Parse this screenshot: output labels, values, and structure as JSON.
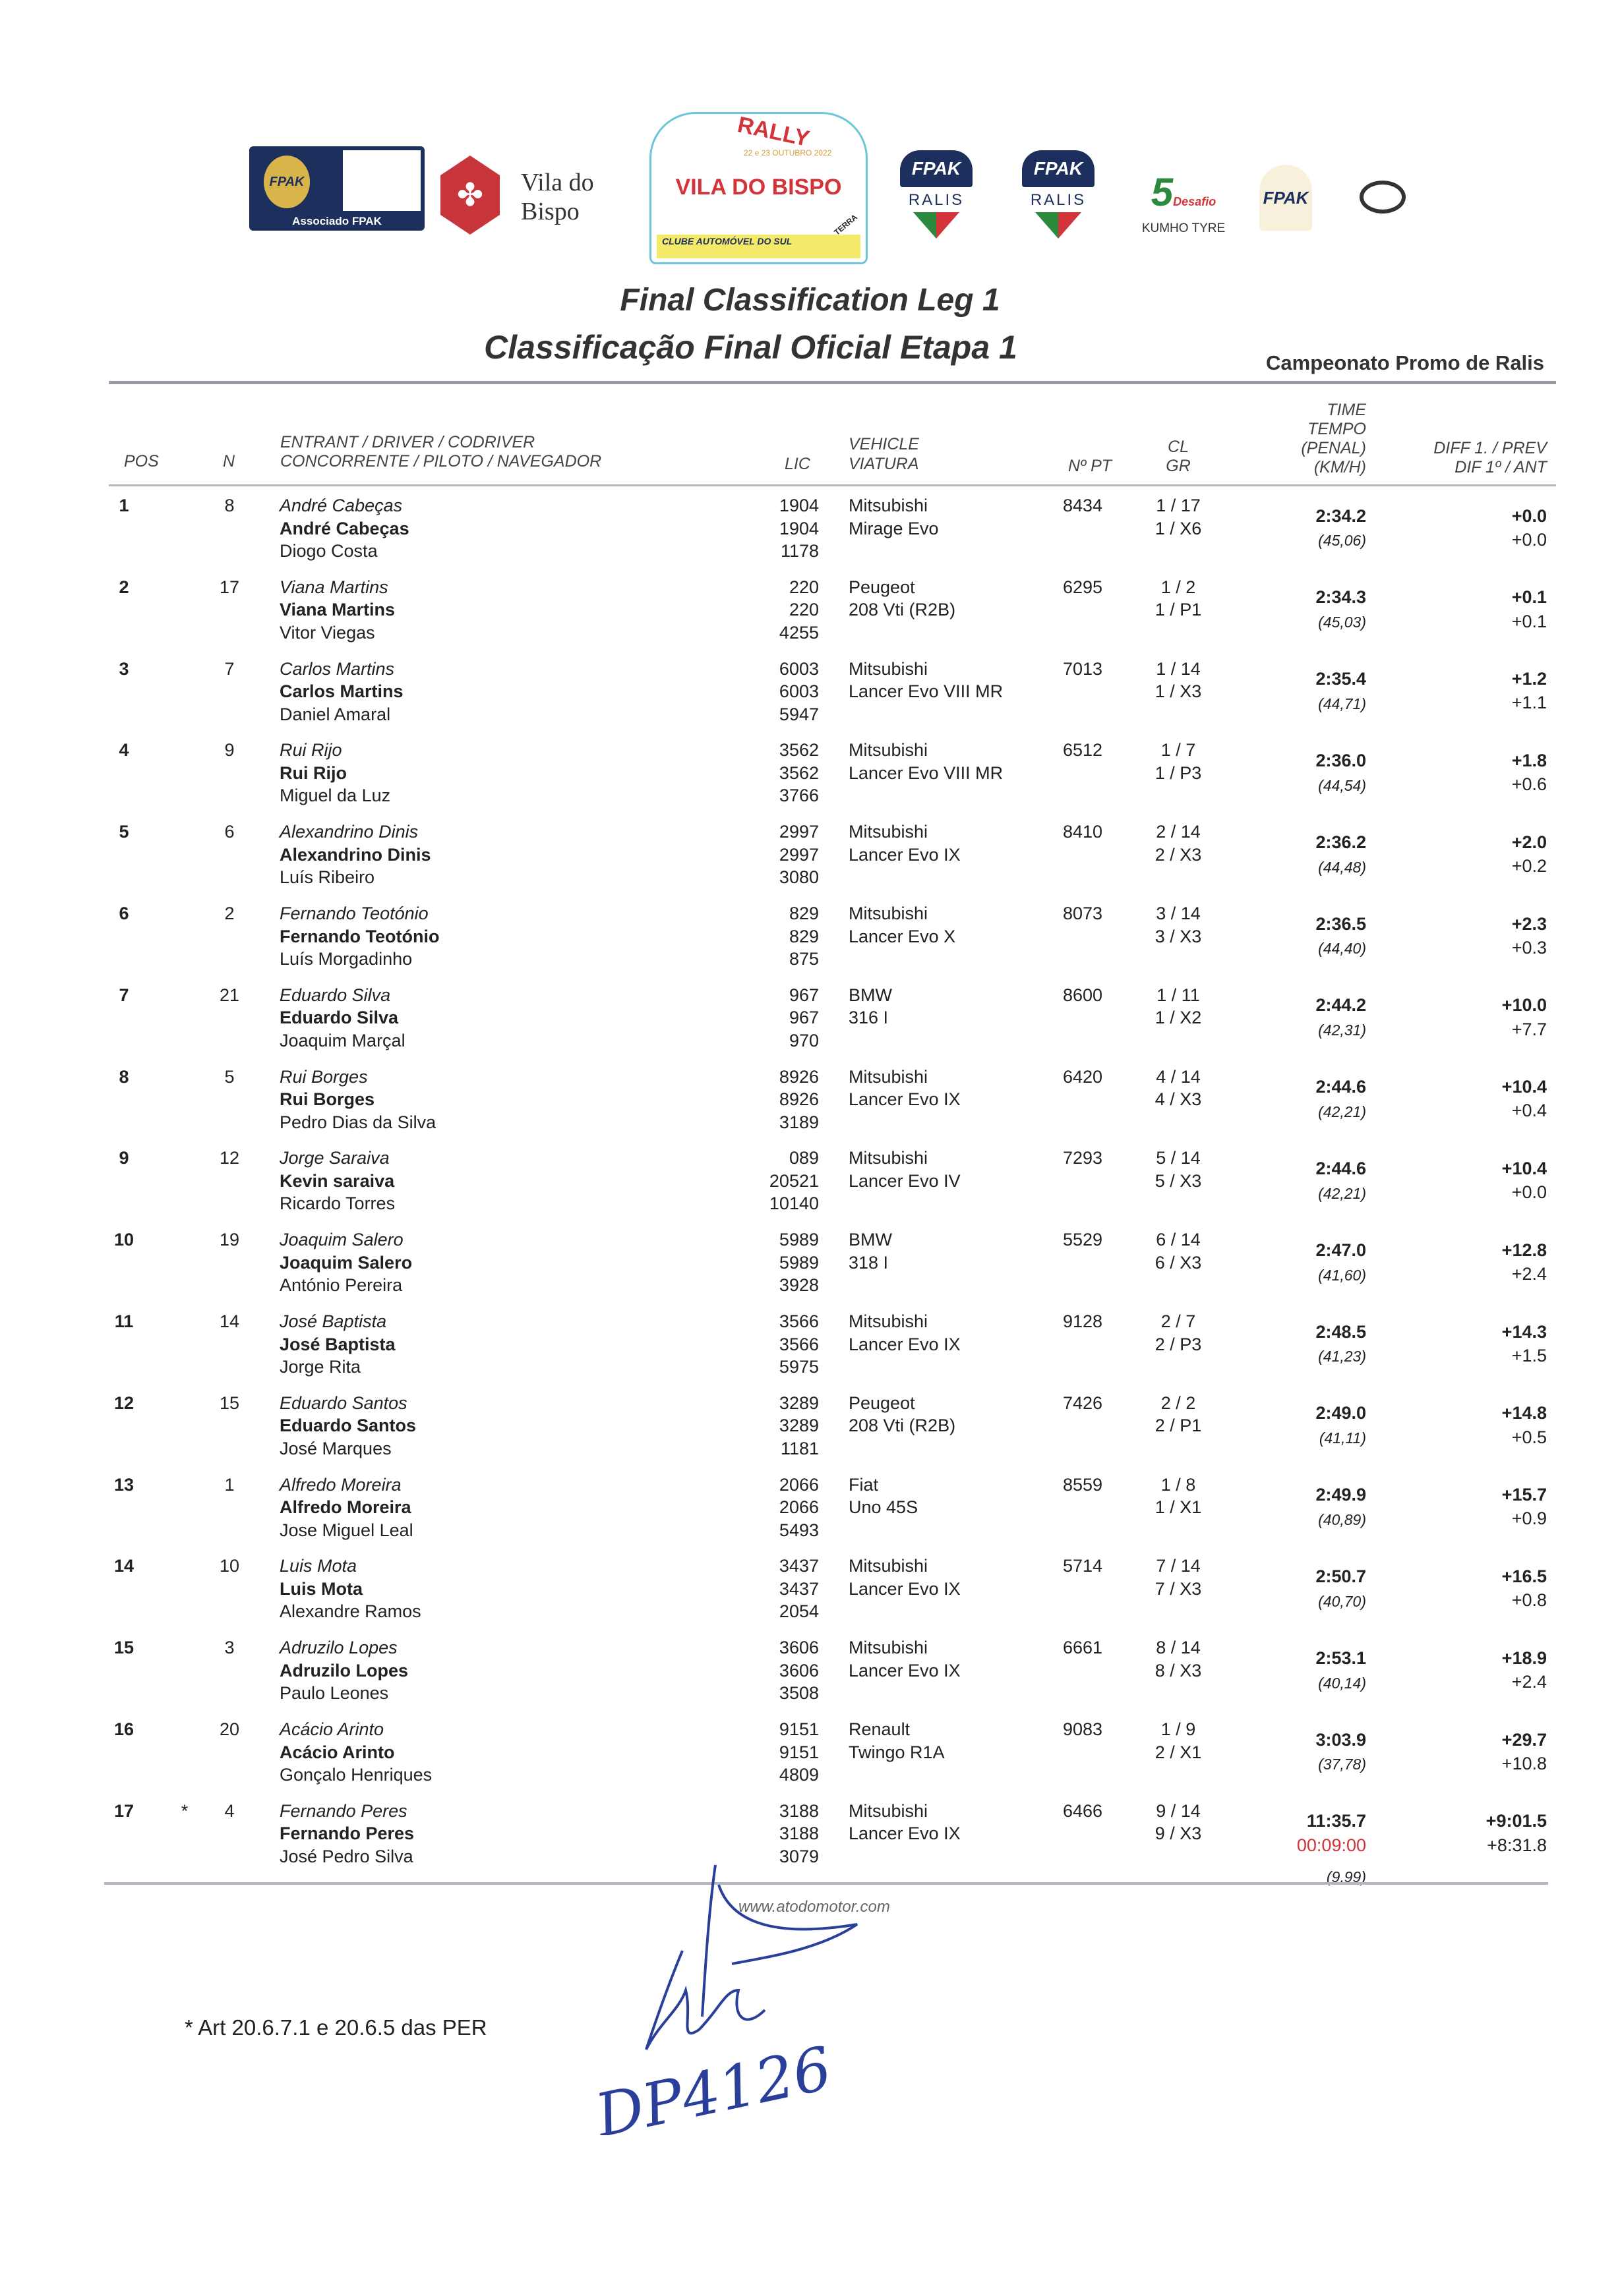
{
  "logos": {
    "fpak_associado": "Associado FPAK",
    "fpak_text": "FPAK",
    "vila_do_bispo": "Vila do Bispo",
    "rally_plate": {
      "rally": "RALLY",
      "dates": "22 e 23 OUTUBRO 2022",
      "name": "VILA DO BISPO",
      "club": "CLUBE AUTOMÓVEL DO SUL",
      "terra": "TERRA"
    },
    "fpak_ralis": "RALIS",
    "desafio": "Desafio",
    "kumho": "KUMHO TYRE",
    "brand_red": "#d2343a",
    "brand_navy": "#1d2f5c"
  },
  "title_en": "Final Classification Leg 1",
  "title_pt": "Classificação Final Oficial Etapa 1",
  "championship": "Campeonato Promo de Ralis",
  "columns": {
    "pos": "POS",
    "n": "N",
    "entrant_en": "ENTRANT / DRIVER / CODRIVER",
    "entrant_pt": "CONCORRENTE / PILOTO / NAVEGADOR",
    "lic": "LIC",
    "vehicle_en": "VEHICLE",
    "vehicle_pt": "VIATURA",
    "npt": "Nº PT",
    "cl": "CL",
    "gr": "GR",
    "time1": "TIME",
    "time2": "TEMPO",
    "time3": "(PENAL)",
    "time4": "(KM/H)",
    "diff_en": "DIFF 1. / PREV",
    "diff_pt": "DIF 1º / ANT"
  },
  "rows": [
    {
      "pos": "1",
      "mark": "",
      "n": "8",
      "entrant": "André Cabeças",
      "driver": "André Cabeças",
      "codriver": "Diogo Costa",
      "lic": [
        "1904",
        "1904",
        "1178"
      ],
      "make": "Mitsubishi",
      "model": "Mirage Evo",
      "npt": "8434",
      "cl": "1 / 17",
      "gr": "1 / X6",
      "time": "2:34.2",
      "penal": "",
      "speed": "(45,06)",
      "diff1": "+0.0",
      "diffprev": "+0.0"
    },
    {
      "pos": "2",
      "mark": "",
      "n": "17",
      "entrant": "Viana Martins",
      "driver": "Viana Martins",
      "codriver": "Vitor Viegas",
      "lic": [
        "220",
        "220",
        "4255"
      ],
      "make": "Peugeot",
      "model": "208 Vti (R2B)",
      "npt": "6295",
      "cl": "1 / 2",
      "gr": "1 / P1",
      "time": "2:34.3",
      "penal": "",
      "speed": "(45,03)",
      "diff1": "+0.1",
      "diffprev": "+0.1"
    },
    {
      "pos": "3",
      "mark": "",
      "n": "7",
      "entrant": "Carlos Martins",
      "driver": "Carlos Martins",
      "codriver": "Daniel Amaral",
      "lic": [
        "6003",
        "6003",
        "5947"
      ],
      "make": "Mitsubishi",
      "model": "Lancer Evo VIII MR",
      "npt": "7013",
      "cl": "1 / 14",
      "gr": "1 / X3",
      "time": "2:35.4",
      "penal": "",
      "speed": "(44,71)",
      "diff1": "+1.2",
      "diffprev": "+1.1"
    },
    {
      "pos": "4",
      "mark": "",
      "n": "9",
      "entrant": "Rui Rijo",
      "driver": "Rui Rijo",
      "codriver": "Miguel da Luz",
      "lic": [
        "3562",
        "3562",
        "3766"
      ],
      "make": "Mitsubishi",
      "model": "Lancer Evo VIII MR",
      "npt": "6512",
      "cl": "1 / 7",
      "gr": "1 / P3",
      "time": "2:36.0",
      "penal": "",
      "speed": "(44,54)",
      "diff1": "+1.8",
      "diffprev": "+0.6"
    },
    {
      "pos": "5",
      "mark": "",
      "n": "6",
      "entrant": "Alexandrino Dinis",
      "driver": "Alexandrino Dinis",
      "codriver": "Luís Ribeiro",
      "lic": [
        "2997",
        "2997",
        "3080"
      ],
      "make": "Mitsubishi",
      "model": "Lancer Evo IX",
      "npt": "8410",
      "cl": "2 / 14",
      "gr": "2 / X3",
      "time": "2:36.2",
      "penal": "",
      "speed": "(44,48)",
      "diff1": "+2.0",
      "diffprev": "+0.2"
    },
    {
      "pos": "6",
      "mark": "",
      "n": "2",
      "entrant": "Fernando Teotónio",
      "driver": "Fernando Teotónio",
      "codriver": "Luís Morgadinho",
      "lic": [
        "829",
        "829",
        "875"
      ],
      "make": "Mitsubishi",
      "model": "Lancer Evo X",
      "npt": "8073",
      "cl": "3 / 14",
      "gr": "3 / X3",
      "time": "2:36.5",
      "penal": "",
      "speed": "(44,40)",
      "diff1": "+2.3",
      "diffprev": "+0.3"
    },
    {
      "pos": "7",
      "mark": "",
      "n": "21",
      "entrant": "Eduardo Silva",
      "driver": "Eduardo Silva",
      "codriver": "Joaquim Marçal",
      "lic": [
        "967",
        "967",
        "970"
      ],
      "make": "BMW",
      "model": "316 I",
      "npt": "8600",
      "cl": "1 / 11",
      "gr": "1 / X2",
      "time": "2:44.2",
      "penal": "",
      "speed": "(42,31)",
      "diff1": "+10.0",
      "diffprev": "+7.7"
    },
    {
      "pos": "8",
      "mark": "",
      "n": "5",
      "entrant": "Rui Borges",
      "driver": "Rui Borges",
      "codriver": "Pedro Dias da Silva",
      "lic": [
        "8926",
        "8926",
        "3189"
      ],
      "make": "Mitsubishi",
      "model": "Lancer Evo IX",
      "npt": "6420",
      "cl": "4 / 14",
      "gr": "4 / X3",
      "time": "2:44.6",
      "penal": "",
      "speed": "(42,21)",
      "diff1": "+10.4",
      "diffprev": "+0.4"
    },
    {
      "pos": "9",
      "mark": "",
      "n": "12",
      "entrant": "Jorge Saraiva",
      "driver": "Kevin saraiva",
      "codriver": "Ricardo Torres",
      "lic": [
        "089",
        "20521",
        "10140"
      ],
      "make": "Mitsubishi",
      "model": "Lancer Evo IV",
      "npt": "7293",
      "cl": "5 / 14",
      "gr": "5 / X3",
      "time": "2:44.6",
      "penal": "",
      "speed": "(42,21)",
      "diff1": "+10.4",
      "diffprev": "+0.0"
    },
    {
      "pos": "10",
      "mark": "",
      "n": "19",
      "entrant": "Joaquim Salero",
      "driver": "Joaquim Salero",
      "codriver": "António Pereira",
      "lic": [
        "5989",
        "5989",
        "3928"
      ],
      "make": "BMW",
      "model": "318 I",
      "npt": "5529",
      "cl": "6 / 14",
      "gr": "6 / X3",
      "time": "2:47.0",
      "penal": "",
      "speed": "(41,60)",
      "diff1": "+12.8",
      "diffprev": "+2.4"
    },
    {
      "pos": "11",
      "mark": "",
      "n": "14",
      "entrant": "José Baptista",
      "driver": "José Baptista",
      "codriver": "Jorge Rita",
      "lic": [
        "3566",
        "3566",
        "5975"
      ],
      "make": "Mitsubishi",
      "model": "Lancer Evo IX",
      "npt": "9128",
      "cl": "2 / 7",
      "gr": "2 / P3",
      "time": "2:48.5",
      "penal": "",
      "speed": "(41,23)",
      "diff1": "+14.3",
      "diffprev": "+1.5"
    },
    {
      "pos": "12",
      "mark": "",
      "n": "15",
      "entrant": "Eduardo Santos",
      "driver": "Eduardo Santos",
      "codriver": "José Marques",
      "lic": [
        "3289",
        "3289",
        "1181"
      ],
      "make": "Peugeot",
      "model": "208 Vti (R2B)",
      "npt": "7426",
      "cl": "2 / 2",
      "gr": "2 / P1",
      "time": "2:49.0",
      "penal": "",
      "speed": "(41,11)",
      "diff1": "+14.8",
      "diffprev": "+0.5"
    },
    {
      "pos": "13",
      "mark": "",
      "n": "1",
      "entrant": "Alfredo Moreira",
      "driver": "Alfredo Moreira",
      "codriver": "Jose Miguel Leal",
      "lic": [
        "2066",
        "2066",
        "5493"
      ],
      "make": "Fiat",
      "model": "Uno 45S",
      "npt": "8559",
      "cl": "1 / 8",
      "gr": "1 / X1",
      "time": "2:49.9",
      "penal": "",
      "speed": "(40,89)",
      "diff1": "+15.7",
      "diffprev": "+0.9"
    },
    {
      "pos": "14",
      "mark": "",
      "n": "10",
      "entrant": "Luis Mota",
      "driver": "Luis Mota",
      "codriver": "Alexandre Ramos",
      "lic": [
        "3437",
        "3437",
        "2054"
      ],
      "make": "Mitsubishi",
      "model": "Lancer Evo IX",
      "npt": "5714",
      "cl": "7 / 14",
      "gr": "7 / X3",
      "time": "2:50.7",
      "penal": "",
      "speed": "(40,70)",
      "diff1": "+16.5",
      "diffprev": "+0.8"
    },
    {
      "pos": "15",
      "mark": "",
      "n": "3",
      "entrant": "Adruzilo Lopes",
      "driver": "Adruzilo Lopes",
      "codriver": "Paulo Leones",
      "lic": [
        "3606",
        "3606",
        "3508"
      ],
      "make": "Mitsubishi",
      "model": "Lancer Evo IX",
      "npt": "6661",
      "cl": "8 / 14",
      "gr": "8 / X3",
      "time": "2:53.1",
      "penal": "",
      "speed": "(40,14)",
      "diff1": "+18.9",
      "diffprev": "+2.4"
    },
    {
      "pos": "16",
      "mark": "",
      "n": "20",
      "entrant": "Acácio Arinto",
      "driver": "Acácio Arinto",
      "codriver": "Gonçalo Henriques",
      "lic": [
        "9151",
        "9151",
        "4809"
      ],
      "make": "Renault",
      "model": "Twingo R1A",
      "npt": "9083",
      "cl": "1 / 9",
      "gr": "2 / X1",
      "time": "3:03.9",
      "penal": "",
      "speed": "(37,78)",
      "diff1": "+29.7",
      "diffprev": "+10.8"
    },
    {
      "pos": "17",
      "mark": "*",
      "n": "4",
      "entrant": "Fernando Peres",
      "driver": "Fernando Peres",
      "codriver": "José Pedro Silva",
      "lic": [
        "3188",
        "3188",
        "3079"
      ],
      "make": "Mitsubishi",
      "model": "Lancer Evo IX",
      "npt": "6466",
      "cl": "9 / 14",
      "gr": "9 / X3",
      "time": "11:35.7",
      "penal": "00:09:00",
      "speed": "(9,99)",
      "diff1": "+9:01.5",
      "diffprev": "+8:31.8"
    }
  ],
  "website": "www.atodomotor.com",
  "footnote": "* Art 20.6.7.1 e 20.6.5 das PER",
  "signature": "DP4126"
}
